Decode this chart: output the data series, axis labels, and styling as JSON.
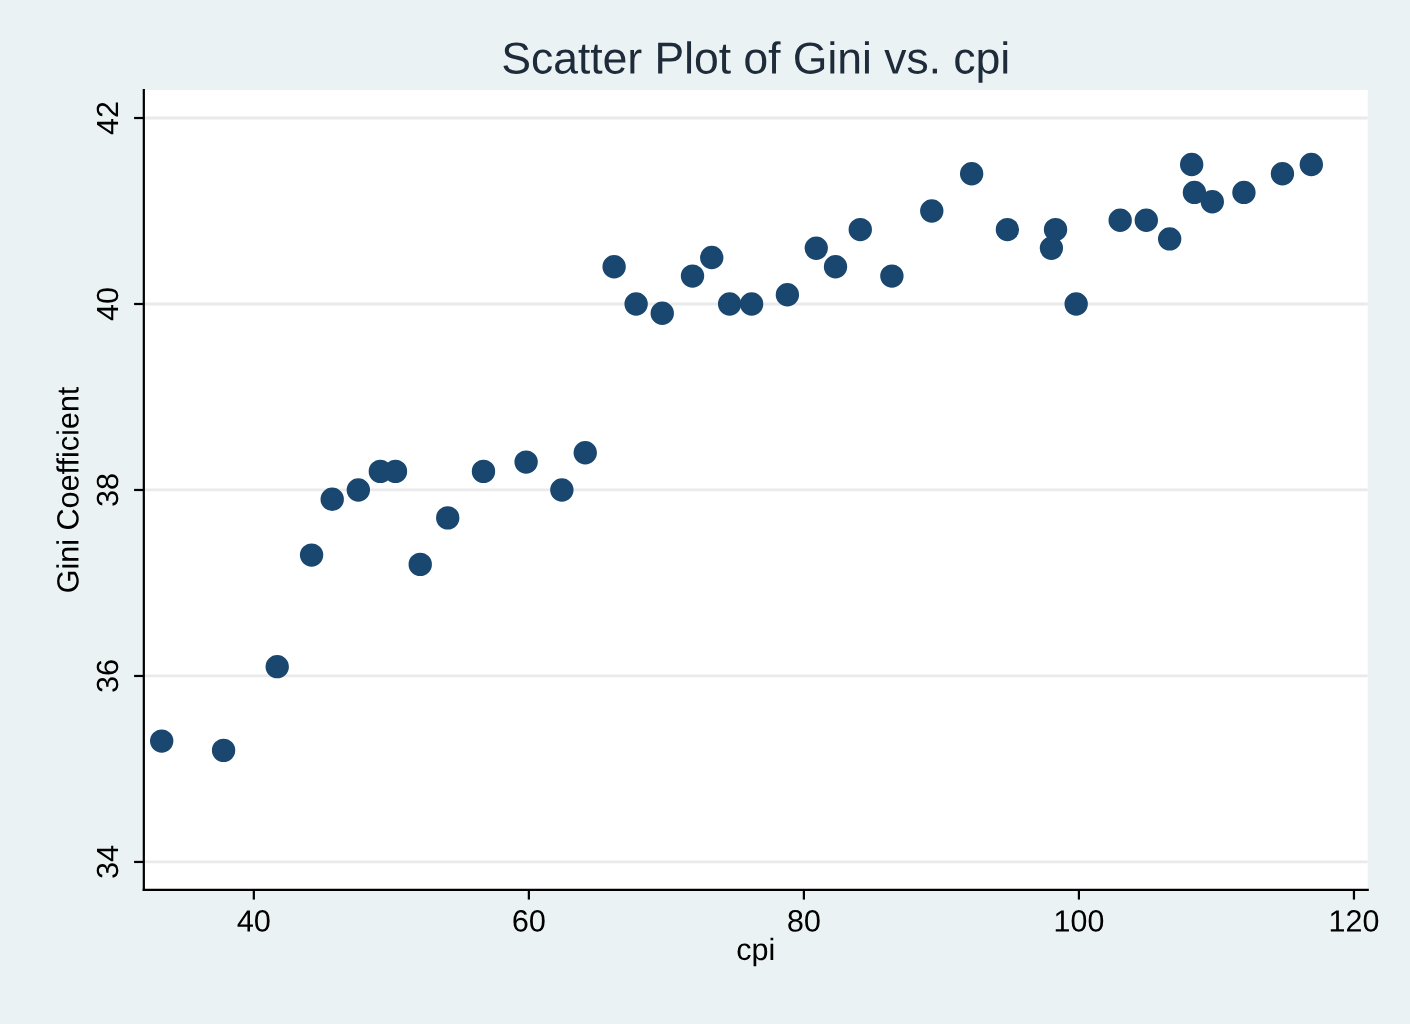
{
  "chart_data": {
    "type": "scatter",
    "title": "Scatter Plot of Gini vs. cpi",
    "xlabel": "cpi",
    "ylabel": "Gini Coefficient",
    "x": [
      33.3,
      37.8,
      41.7,
      44.2,
      45.7,
      47.6,
      49.2,
      50.3,
      52.1,
      54.1,
      56.7,
      59.8,
      62.4,
      64.1,
      66.2,
      67.8,
      69.7,
      71.9,
      73.3,
      74.6,
      76.2,
      78.8,
      80.9,
      82.3,
      84.1,
      86.4,
      89.3,
      92.2,
      94.8,
      98.0,
      98.3,
      99.8,
      103.0,
      104.9,
      106.6,
      108.2,
      108.4,
      109.7,
      112.0,
      114.8,
      116.9
    ],
    "series": [
      {
        "color": "#1a476f",
        "values": [
          35.3,
          35.2,
          36.1,
          37.3,
          37.9,
          38.0,
          38.2,
          38.2,
          37.2,
          37.7,
          38.2,
          38.3,
          38.0,
          38.4,
          40.4,
          40.0,
          39.9,
          40.3,
          40.5,
          40.0,
          40.0,
          40.1,
          40.6,
          40.4,
          40.8,
          40.3,
          41.0,
          41.4,
          40.8,
          40.6,
          40.8,
          40.0,
          40.9,
          40.9,
          40.7,
          41.5,
          41.2,
          41.1,
          41.2,
          41.4,
          41.5
        ]
      }
    ],
    "xlim": [
      32,
      121
    ],
    "ylim": [
      33.7,
      42.3
    ],
    "xticks": [
      40,
      60,
      80,
      100,
      120
    ],
    "yticks": [
      34,
      36,
      38,
      40,
      42
    ],
    "grid": "y",
    "marker": "circle",
    "legend": false
  }
}
